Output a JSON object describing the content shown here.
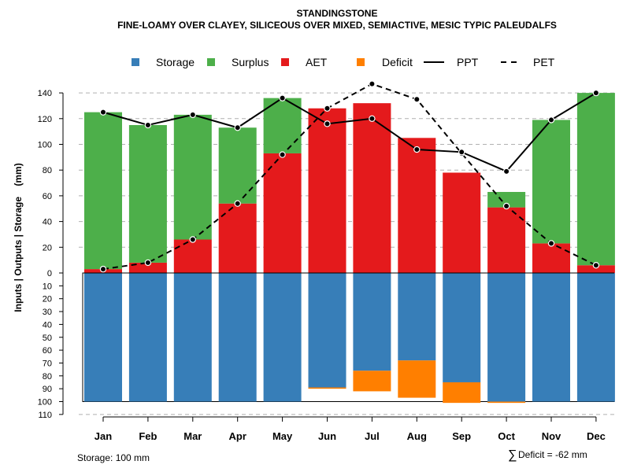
{
  "chart_data": {
    "type": "bar",
    "title": "STANDINGSTONE",
    "subtitle": "FINE-LOAMY OVER CLAYEY, SILICEOUS OVER MIXED, SEMIACTIVE, MESIC TYPIC PALEUDALFS",
    "ylabel": "Inputs | Outputs | Storage    (mm)",
    "categories": [
      "Jan",
      "Feb",
      "Mar",
      "Apr",
      "May",
      "Jun",
      "Jul",
      "Aug",
      "Sep",
      "Oct",
      "Nov",
      "Dec"
    ],
    "upper_ticks": [
      "0",
      "20",
      "40",
      "60",
      "80",
      "100",
      "120",
      "140"
    ],
    "upper_tick_values": [
      0,
      20,
      40,
      60,
      80,
      100,
      120,
      140
    ],
    "lower_ticks": [
      "10",
      "20",
      "30",
      "40",
      "50",
      "60",
      "70",
      "80",
      "90",
      "100",
      "110"
    ],
    "lower_tick_values": [
      10,
      20,
      30,
      40,
      50,
      60,
      70,
      80,
      90,
      100,
      110
    ],
    "ylim_upper": [
      0,
      150
    ],
    "ylim_lower": [
      0,
      110
    ],
    "legend": [
      {
        "name": "Storage",
        "color": "#377eb8",
        "kind": "square"
      },
      {
        "name": "Surplus",
        "color": "#4daf4a",
        "kind": "square"
      },
      {
        "name": "AET",
        "color": "#e41a1c",
        "kind": "square"
      },
      {
        "name": "Deficit",
        "color": "#ff7f00",
        "kind": "square"
      },
      {
        "name": "PPT",
        "color": "#000000",
        "kind": "solid"
      },
      {
        "name": "PET",
        "color": "#000000",
        "kind": "dashed"
      }
    ],
    "series": [
      {
        "name": "AET",
        "values": [
          3,
          8,
          26,
          54,
          93,
          128,
          132,
          105,
          78,
          51,
          23,
          6
        ]
      },
      {
        "name": "Surplus",
        "values": [
          122,
          107,
          97,
          59,
          43,
          0,
          0,
          0,
          0,
          12,
          96,
          134
        ]
      },
      {
        "name": "Storage",
        "values": [
          100,
          100,
          100,
          100,
          100,
          89,
          76,
          68,
          85,
          100,
          100,
          100
        ]
      },
      {
        "name": "Deficit",
        "values": [
          0,
          0,
          0,
          0,
          0,
          1,
          16,
          29,
          16,
          1,
          0,
          0
        ]
      },
      {
        "name": "PPT",
        "values": [
          125,
          115,
          123,
          113,
          136,
          116,
          120,
          96,
          94,
          79,
          119,
          140
        ]
      },
      {
        "name": "PET",
        "values": [
          3,
          8,
          26,
          54,
          92,
          128,
          147,
          135,
          93,
          52,
          23,
          6
        ]
      }
    ],
    "notes": {
      "storage": "Storage: 100 mm",
      "deficit_symbol": "∑",
      "deficit": "Deficit = -62 mm"
    }
  }
}
